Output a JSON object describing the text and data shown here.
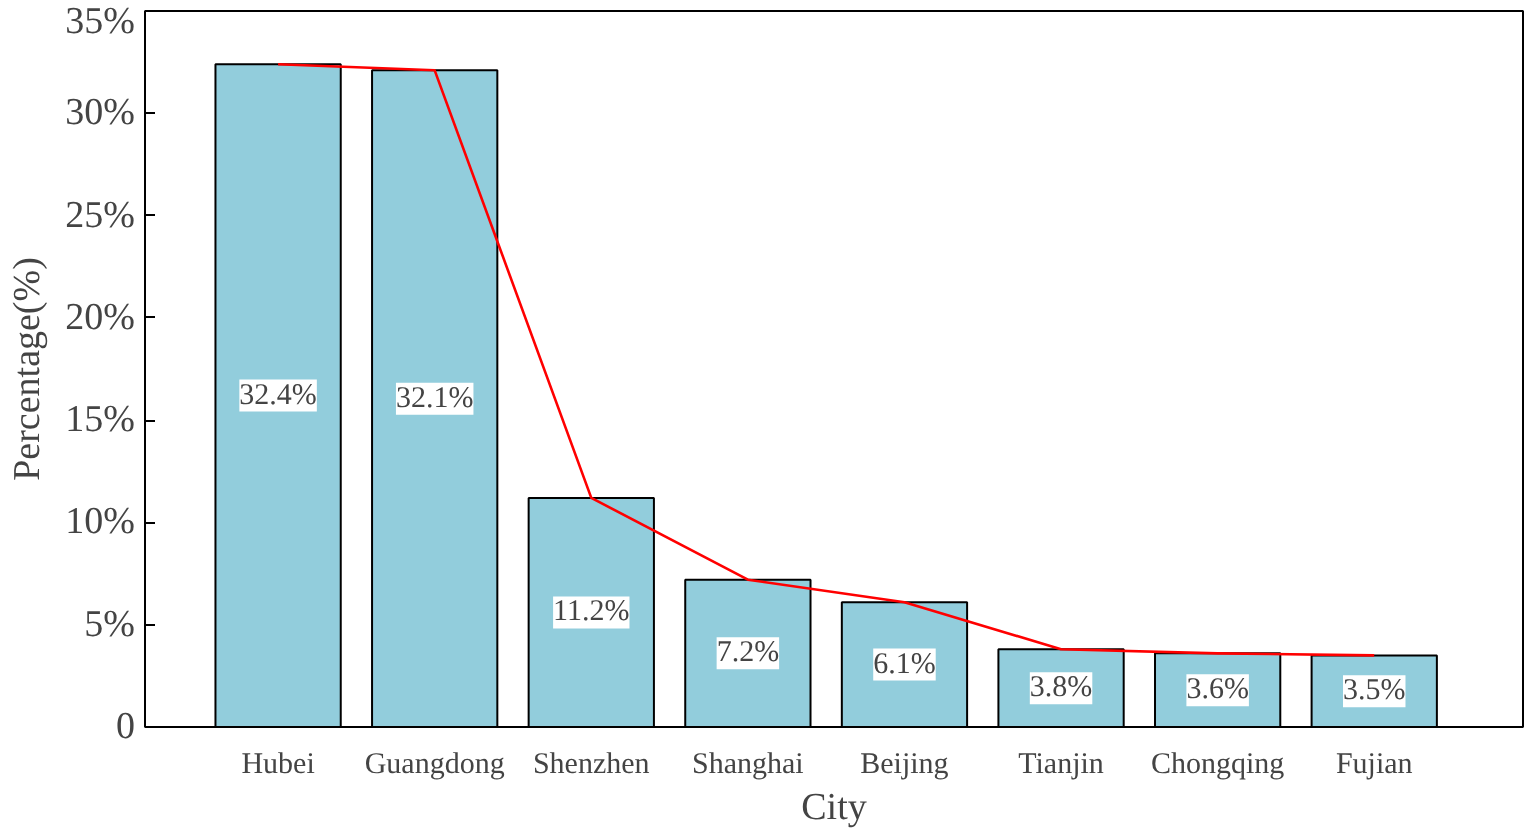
{
  "chart_data": {
    "type": "bar",
    "xlabel": "City",
    "ylabel": "Percentage(%)",
    "categories": [
      "Hubei",
      "Guangdong",
      "Shenzhen",
      "Shanghai",
      "Beijing",
      "Tianjin",
      "Chongqing",
      "Fujian"
    ],
    "series": [
      {
        "color": "#92cddc",
        "values": [
          32.4,
          32.1,
          11.2,
          7.2,
          6.1,
          3.8,
          3.6,
          3.5
        ],
        "value_labels": [
          "32.4%",
          "32.1%",
          "11.2%",
          "7.2%",
          "6.1%",
          "3.8%",
          "3.6%",
          "3.5%"
        ]
      },
      {
        "type": "line",
        "color": "#ff0000",
        "values": [
          32.4,
          32.1,
          11.2,
          7.2,
          6.1,
          3.8,
          3.6,
          3.5
        ]
      }
    ],
    "ylim": [
      0,
      35
    ],
    "yticks": [
      {
        "value": 0,
        "label": "0"
      },
      {
        "value": 5,
        "label": "5%"
      },
      {
        "value": 10,
        "label": "10%"
      },
      {
        "value": 15,
        "label": "15%"
      },
      {
        "value": 20,
        "label": "20%"
      },
      {
        "value": 25,
        "label": "25%"
      },
      {
        "value": 30,
        "label": "30%"
      },
      {
        "value": 35,
        "label": "35%"
      }
    ],
    "grid": false
  }
}
